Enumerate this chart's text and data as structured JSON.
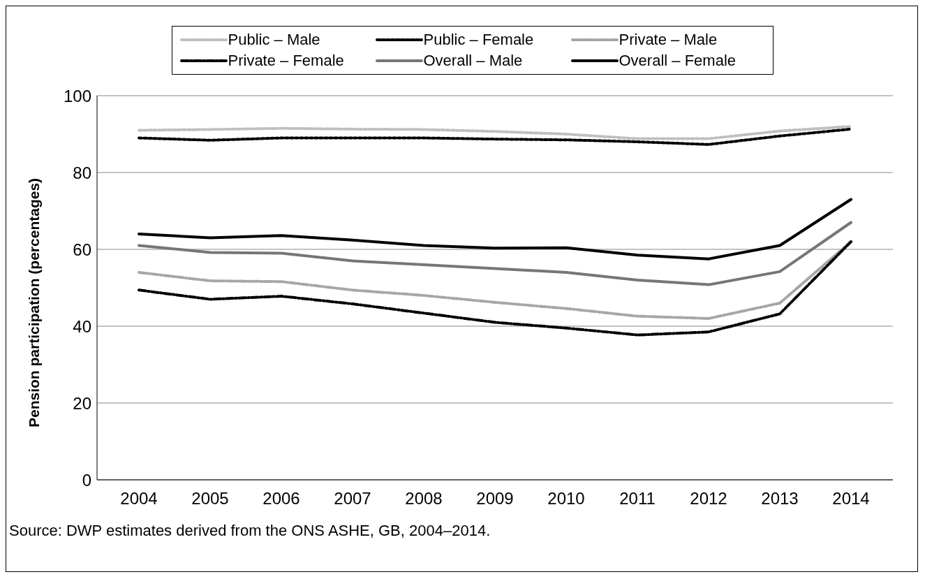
{
  "chart_data": {
    "type": "line",
    "ylabel": "Pension participation (percentages)",
    "categories": [
      "2004",
      "2005",
      "2006",
      "2007",
      "2008",
      "2009",
      "2010",
      "2011",
      "2012",
      "2013",
      "2014"
    ],
    "series": [
      {
        "name": "Public – Male",
        "color": "#bfbfbf",
        "line_style": "dotted",
        "values": [
          91,
          91.2,
          91.5,
          91.3,
          91.2,
          90.7,
          90,
          88.8,
          88.8,
          90.8,
          92
        ]
      },
      {
        "name": "Public – Female",
        "color": "#000000",
        "line_style": "dotted",
        "values": [
          89,
          88.4,
          89,
          89,
          89,
          88.7,
          88.5,
          88,
          87.3,
          89.5,
          91.3
        ]
      },
      {
        "name": "Private – Male",
        "color": "#a6a6a6",
        "line_style": "dashed",
        "values": [
          54,
          51.8,
          51.6,
          49.4,
          48,
          46.2,
          44.6,
          42.6,
          42,
          46,
          62
        ]
      },
      {
        "name": "Private – Female",
        "color": "#000000",
        "line_style": "dashed",
        "values": [
          49.4,
          47,
          47.8,
          45.8,
          43.4,
          41,
          39.5,
          37.7,
          38.5,
          43.2,
          62
        ]
      },
      {
        "name": "Overall – Male",
        "color": "#767676",
        "line_style": "solid",
        "values": [
          61,
          59.2,
          59,
          57,
          56,
          55,
          54,
          52,
          50.8,
          54.2,
          67
        ]
      },
      {
        "name": "Overall – Female",
        "color": "#000000",
        "line_style": "solid",
        "values": [
          64,
          63,
          63.6,
          62.4,
          61,
          60.3,
          60.4,
          58.5,
          57.5,
          61,
          73
        ]
      }
    ],
    "ylim": [
      0,
      100
    ],
    "yticks": [
      0,
      20,
      40,
      60,
      80,
      100
    ],
    "grid": "y",
    "legend": "top",
    "marker": "none",
    "annotations": [
      "Source: DWP estimates derived from the ONS ASHE, GB, 2004–2014."
    ]
  }
}
